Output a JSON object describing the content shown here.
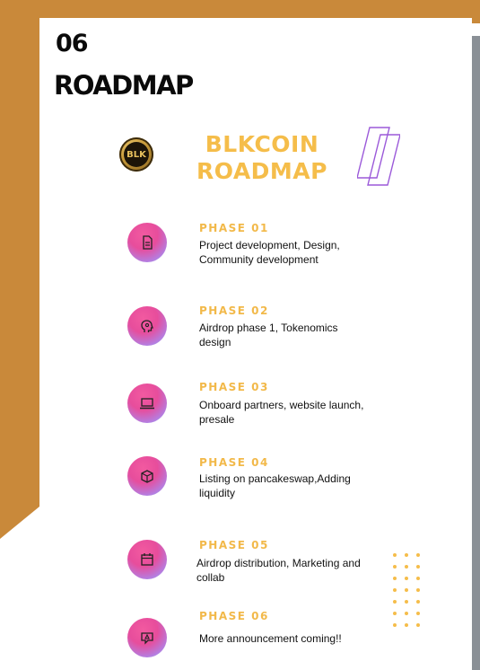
{
  "section": {
    "number": "06",
    "title": "ROADMAP"
  },
  "logo": {
    "text": "BLK",
    "icon": "blk-coin-icon"
  },
  "heading": {
    "line1": "BLKCOIN",
    "line2": "ROADMAP"
  },
  "colors": {
    "accent": "#f5bd4a",
    "orange_bg": "#c9893a",
    "stripe": "#9b59d9"
  },
  "phases": [
    {
      "label": "PHASE 01",
      "description": "Project development, Design, Community development",
      "icon": "document-icon"
    },
    {
      "label": "PHASE 02",
      "description": "Airdrop phase 1,  Tokenomics design",
      "icon": "head-gear-icon"
    },
    {
      "label": "PHASE 03",
      "description": "Onboard partners, website launch, presale",
      "icon": "laptop-icon"
    },
    {
      "label": "PHASE 04",
      "description": "Listing on pancakeswap,Adding liquidity",
      "icon": "box-icon"
    },
    {
      "label": "PHASE 05",
      "description": "Airdrop distribution, Marketing and collab",
      "icon": "calendar-icon"
    },
    {
      "label": "PHASE 06",
      "description": "More announcement coming!!",
      "icon": "notification-icon"
    }
  ]
}
